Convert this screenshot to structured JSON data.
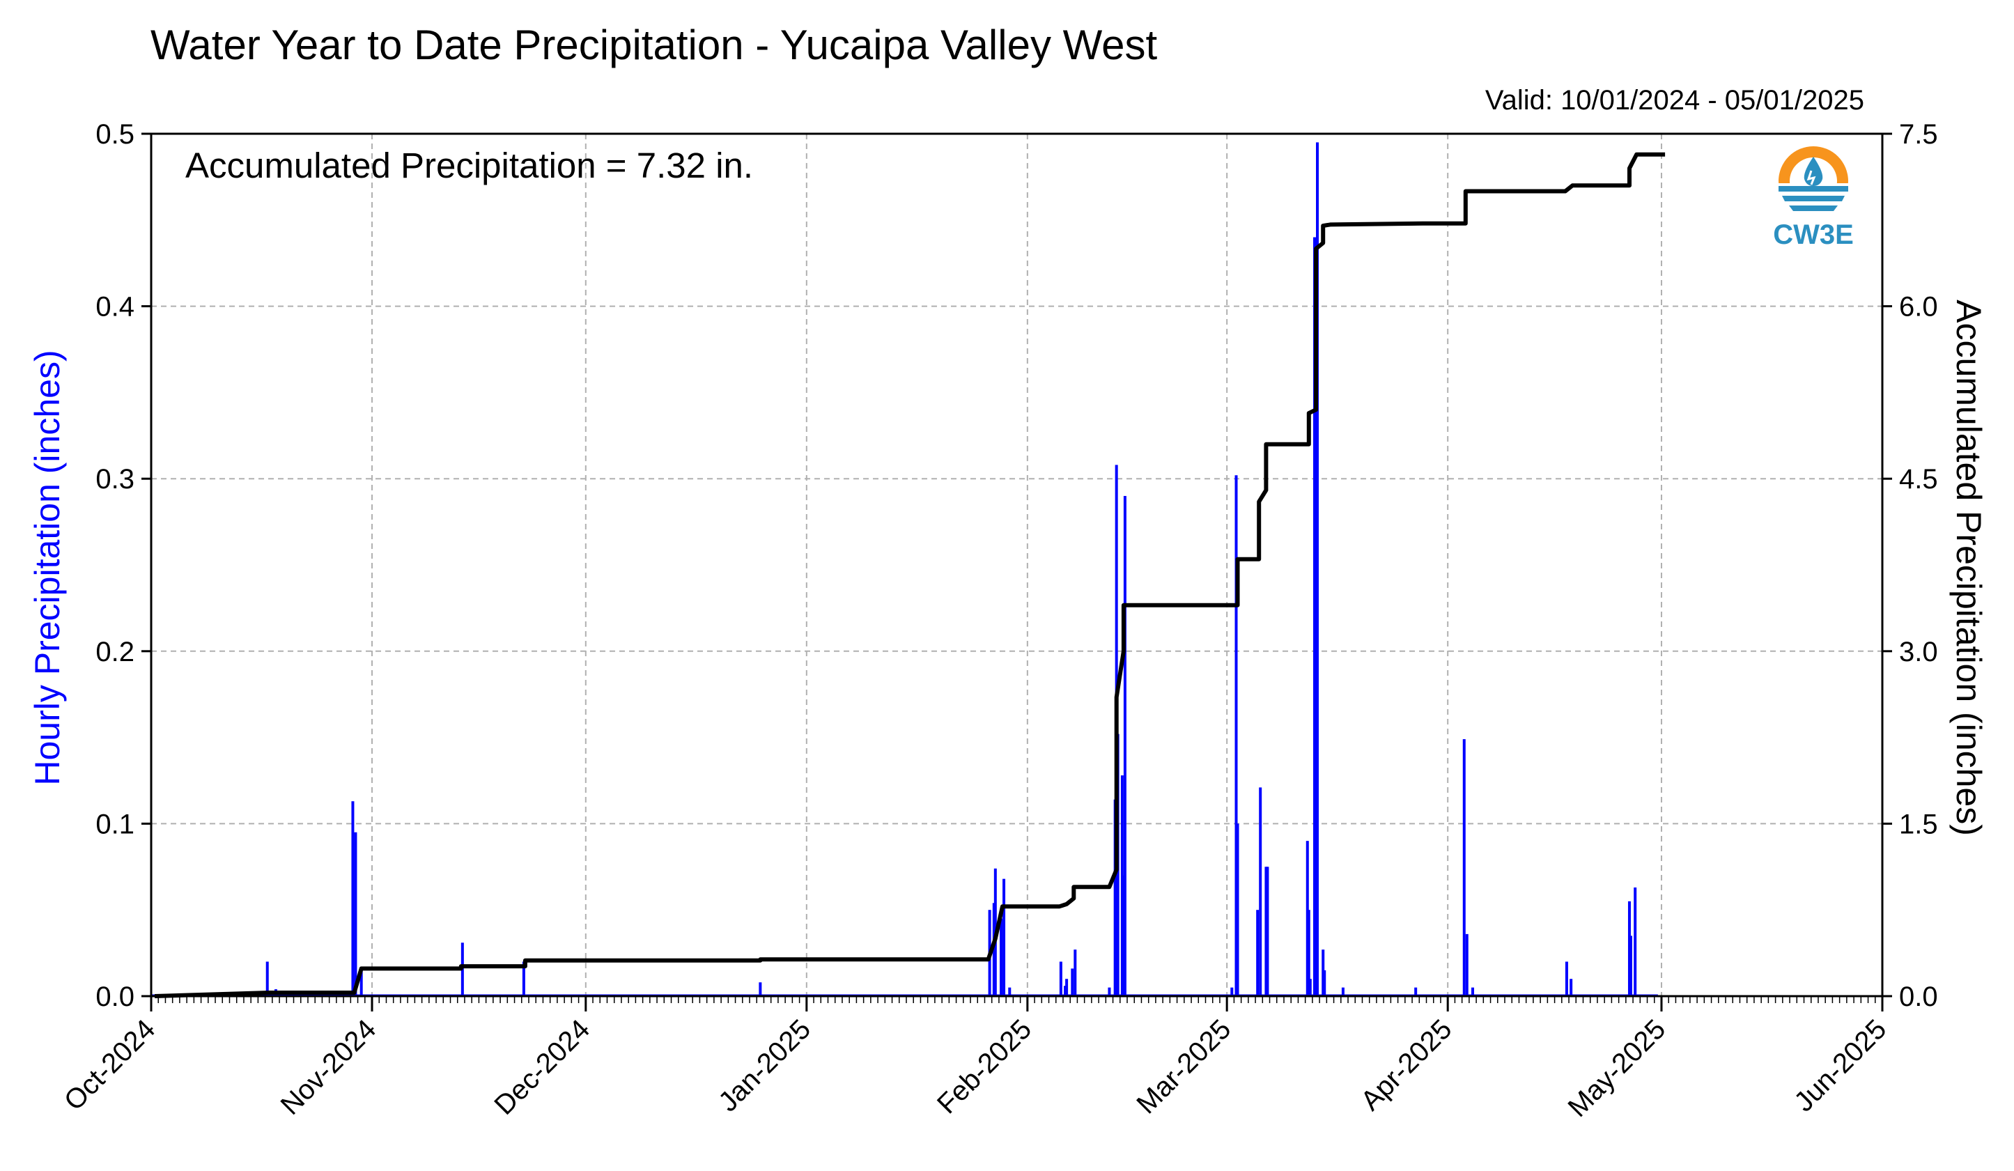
{
  "title": "Water Year to Date Precipitation - Yucaipa Valley West",
  "valid_text": "Valid: 10/01/2024 - 05/01/2025",
  "accumulated_text": "Accumulated Precipitation = 7.32 in.",
  "logo": {
    "text": "CW3E",
    "icon": "water-drop-sun-icon",
    "colors": [
      "#f7941d",
      "#2b8fc0"
    ]
  },
  "colors": {
    "hourly": "#0000ff",
    "accumulated": "#000000",
    "grid": "#b0b0b0"
  },
  "chart_data": {
    "type": "bar",
    "title": "Water Year to Date Precipitation - Yucaipa Valley West",
    "ylabel": "Hourly Precipitation (inches)",
    "y2label": "Accumulated Precipitation (inches)",
    "xlim": [
      "2024-10-01",
      "2025-06-01"
    ],
    "ylim": [
      0,
      0.5
    ],
    "y2lim": [
      0,
      7.5
    ],
    "grid": true,
    "x_tick_labels": [
      "Oct-2024",
      "Nov-2024",
      "Dec-2024",
      "Jan-2025",
      "Feb-2025",
      "Mar-2025",
      "Apr-2025",
      "May-2025",
      "Jun-2025"
    ],
    "x_tick_dates": [
      "2024-10-01",
      "2024-11-01",
      "2024-12-01",
      "2025-01-01",
      "2025-02-01",
      "2025-03-01",
      "2025-04-01",
      "2025-05-01",
      "2025-06-01"
    ],
    "y_tick_labels": [
      "0.0",
      "0.1",
      "0.2",
      "0.3",
      "0.4",
      "0.5"
    ],
    "y2_tick_labels": [
      "0.0",
      "1.5",
      "3.0",
      "4.5",
      "6.0",
      "7.5"
    ],
    "series": [
      {
        "name": "Hourly Precipitation",
        "type": "bar",
        "color": "#0000ff",
        "x": [
          "2024-10-17",
          "2024-10-18",
          "2024-10-29",
          "2024-10-29",
          "2024-10-30",
          "2024-11-13",
          "2024-11-22",
          "2024-12-25",
          "2025-01-26",
          "2025-01-27",
          "2025-01-27",
          "2025-01-28",
          "2025-01-28",
          "2025-01-29",
          "2025-02-05",
          "2025-02-06",
          "2025-02-06",
          "2025-02-07",
          "2025-02-07",
          "2025-02-12",
          "2025-02-13",
          "2025-02-13",
          "2025-02-13",
          "2025-02-14",
          "2025-02-14",
          "2025-02-14",
          "2025-03-01",
          "2025-03-02",
          "2025-03-02",
          "2025-03-05",
          "2025-03-05",
          "2025-03-06",
          "2025-03-06",
          "2025-03-12",
          "2025-03-12",
          "2025-03-12",
          "2025-03-13",
          "2025-03-13",
          "2025-03-13",
          "2025-03-13",
          "2025-03-14",
          "2025-03-14",
          "2025-03-17",
          "2025-03-27",
          "2025-04-03",
          "2025-04-03",
          "2025-04-04",
          "2025-04-17",
          "2025-04-18",
          "2025-04-26",
          "2025-04-26",
          "2025-04-27"
        ],
        "values": [
          0.02,
          0.004,
          0.095,
          0.113,
          0.015,
          0.031,
          0.02,
          0.008,
          0.05,
          0.054,
          0.074,
          0.068,
          0.045,
          0.005,
          0.02,
          0.006,
          0.01,
          0.027,
          0.016,
          0.005,
          0.152,
          0.114,
          0.308,
          0.29,
          0.128,
          0.07,
          0.005,
          0.302,
          0.1,
          0.121,
          0.05,
          0.075,
          0.075,
          0.09,
          0.05,
          0.01,
          0.065,
          0.21,
          0.495,
          0.44,
          0.027,
          0.015,
          0.005,
          0.005,
          0.036,
          0.149,
          0.005,
          0.02,
          0.01,
          0.055,
          0.035,
          0.063
        ]
      },
      {
        "name": "Accumulated Precipitation",
        "type": "line",
        "color": "#000000",
        "x": [
          "2024-10-01",
          "2024-10-17",
          "2024-10-29",
          "2024-10-30",
          "2024-11-13",
          "2024-11-13",
          "2024-11-22",
          "2024-11-22",
          "2024-12-25",
          "2024-12-25",
          "2025-01-26",
          "2025-01-27",
          "2025-01-28",
          "2025-02-05",
          "2025-02-06",
          "2025-02-07",
          "2025-02-07",
          "2025-02-12",
          "2025-02-13",
          "2025-02-13",
          "2025-02-14",
          "2025-02-14",
          "2025-03-02",
          "2025-03-02",
          "2025-03-05",
          "2025-03-05",
          "2025-03-06",
          "2025-03-06",
          "2025-03-12",
          "2025-03-12",
          "2025-03-13",
          "2025-03-13",
          "2025-03-13",
          "2025-03-14",
          "2025-03-14",
          "2025-03-15",
          "2025-03-28",
          "2025-04-03",
          "2025-04-03",
          "2025-04-17",
          "2025-04-18",
          "2025-04-26",
          "2025-04-26",
          "2025-04-27",
          "2025-05-01"
        ],
        "values": [
          0.0,
          0.03,
          0.03,
          0.24,
          0.24,
          0.26,
          0.26,
          0.31,
          0.31,
          0.32,
          0.32,
          0.5,
          0.78,
          0.78,
          0.8,
          0.85,
          0.95,
          0.95,
          1.1,
          2.6,
          3.0,
          3.4,
          3.4,
          3.8,
          3.8,
          4.3,
          4.4,
          4.8,
          4.8,
          5.07,
          5.1,
          6.3,
          6.5,
          6.55,
          6.7,
          6.71,
          6.72,
          6.72,
          7.0,
          7.0,
          7.05,
          7.05,
          7.2,
          7.32,
          7.32
        ]
      }
    ]
  }
}
